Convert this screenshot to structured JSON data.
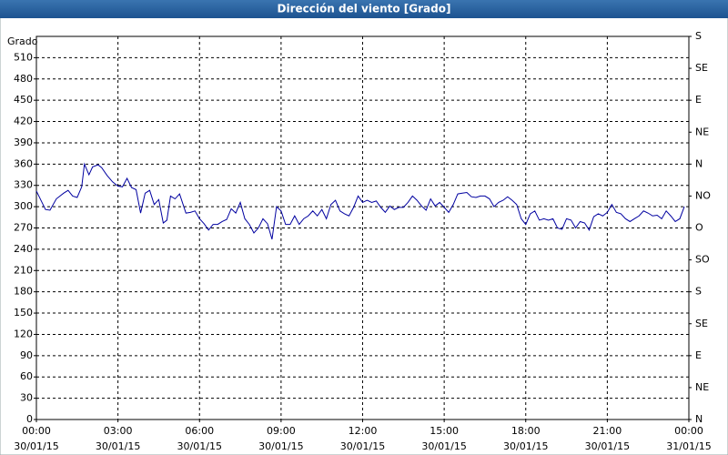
{
  "chart_data": {
    "type": "line",
    "title": "Dirección del viento [Grado]",
    "y_label": "Grado",
    "xlim": [
      0,
      1440
    ],
    "xticks": [
      {
        "value": 0,
        "label": [
          "00:00",
          "30/01/15"
        ]
      },
      {
        "value": 180,
        "label": [
          "03:00",
          "30/01/15"
        ]
      },
      {
        "value": 360,
        "label": [
          "06:00",
          "30/01/15"
        ]
      },
      {
        "value": 540,
        "label": [
          "09:00",
          "30/01/15"
        ]
      },
      {
        "value": 720,
        "label": [
          "12:00",
          "30/01/15"
        ]
      },
      {
        "value": 900,
        "label": [
          "15:00",
          "30/01/15"
        ]
      },
      {
        "value": 1080,
        "label": [
          "18:00",
          "30/01/15"
        ]
      },
      {
        "value": 1260,
        "label": [
          "21:00",
          "30/01/15"
        ]
      },
      {
        "value": 1440,
        "label": [
          "00:00",
          "31/01/15"
        ]
      }
    ],
    "ylim": [
      0,
      540
    ],
    "yticks": [
      0,
      30,
      60,
      90,
      120,
      150,
      180,
      210,
      240,
      270,
      300,
      330,
      360,
      390,
      420,
      450,
      480,
      510
    ],
    "y2lim": [
      0,
      540
    ],
    "y2ticks": [
      {
        "value": 0,
        "label": "N"
      },
      {
        "value": 45,
        "label": "NE"
      },
      {
        "value": 90,
        "label": "E"
      },
      {
        "value": 135,
        "label": "SE"
      },
      {
        "value": 180,
        "label": "S"
      },
      {
        "value": 225,
        "label": "SO"
      },
      {
        "value": 270,
        "label": "O"
      },
      {
        "value": 315,
        "label": "NO"
      },
      {
        "value": 360,
        "label": "N"
      },
      {
        "value": 405,
        "label": "NE"
      },
      {
        "value": 450,
        "label": "E"
      },
      {
        "value": 495,
        "label": "SE"
      },
      {
        "value": 540,
        "label": "S"
      }
    ],
    "grid": true,
    "color": "#0000a0",
    "x": [
      0,
      10,
      20,
      30,
      44,
      60,
      70,
      80,
      90,
      100,
      106,
      116,
      124,
      136,
      144,
      156,
      168,
      180,
      190,
      200,
      210,
      220,
      230,
      240,
      250,
      260,
      270,
      280,
      288,
      296,
      306,
      316,
      330,
      340,
      350,
      360,
      370,
      380,
      390,
      400,
      410,
      420,
      430,
      440,
      450,
      460,
      470,
      480,
      490,
      500,
      510,
      520,
      530,
      540,
      550,
      560,
      570,
      580,
      590,
      600,
      610,
      620,
      630,
      640,
      650,
      660,
      670,
      680,
      690,
      700,
      710,
      720,
      730,
      740,
      750,
      760,
      770,
      780,
      790,
      800,
      810,
      820,
      830,
      840,
      850,
      860,
      870,
      880,
      890,
      900,
      910,
      920,
      930,
      940,
      950,
      960,
      970,
      980,
      990,
      1000,
      1010,
      1020,
      1030,
      1040,
      1050,
      1060,
      1070,
      1080,
      1090,
      1100,
      1110,
      1120,
      1130,
      1140,
      1150,
      1160,
      1170,
      1180,
      1190,
      1200,
      1210,
      1220,
      1230,
      1240,
      1250,
      1260,
      1270,
      1280,
      1290,
      1300,
      1310,
      1320,
      1330,
      1340,
      1350,
      1360,
      1370,
      1380,
      1390,
      1400,
      1410,
      1420,
      1430
    ],
    "values": [
      322,
      309,
      296,
      295,
      311,
      319,
      323,
      315,
      313,
      328,
      360,
      345,
      356,
      359,
      355,
      344,
      335,
      329,
      328,
      340,
      327,
      324,
      291,
      319,
      323,
      303,
      310,
      277,
      281,
      315,
      311,
      318,
      291,
      292,
      294,
      283,
      276,
      267,
      275,
      275,
      279,
      282,
      297,
      291,
      306,
      283,
      275,
      263,
      270,
      283,
      276,
      254,
      300,
      294,
      275,
      275,
      287,
      275,
      283,
      287,
      294,
      287,
      296,
      283,
      303,
      309,
      294,
      290,
      287,
      299,
      315,
      306,
      309,
      306,
      308,
      299,
      292,
      301,
      296,
      299,
      299,
      306,
      315,
      309,
      301,
      295,
      311,
      301,
      306,
      299,
      292,
      303,
      318,
      319,
      320,
      314,
      313,
      315,
      315,
      311,
      300,
      306,
      309,
      314,
      309,
      303,
      283,
      275,
      290,
      294,
      281,
      283,
      281,
      283,
      270,
      268,
      283,
      281,
      270,
      279,
      277,
      267,
      286,
      290,
      287,
      292,
      303,
      292,
      290,
      283,
      279,
      283,
      287,
      294,
      291,
      287,
      288,
      283,
      294,
      287,
      279,
      283,
      300
    ]
  }
}
